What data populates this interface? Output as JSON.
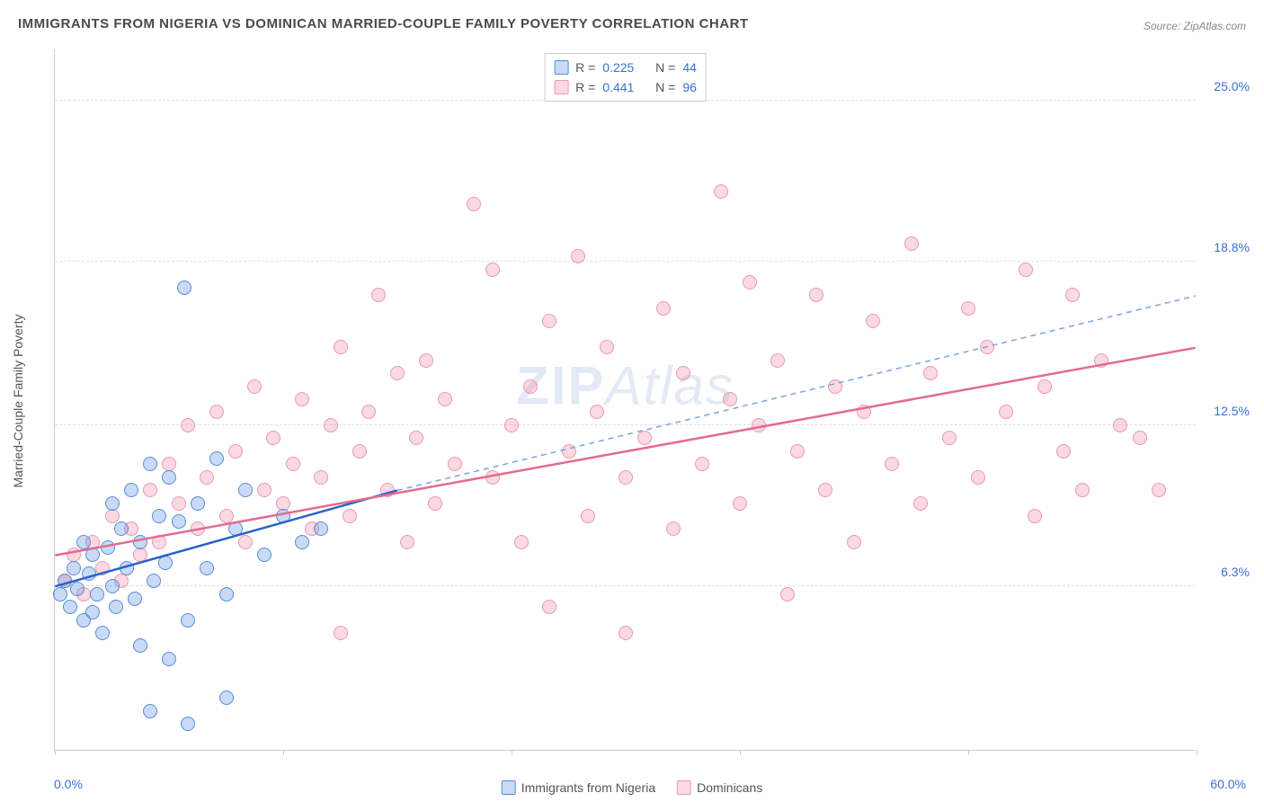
{
  "title": "IMMIGRANTS FROM NIGERIA VS DOMINICAN MARRIED-COUPLE FAMILY POVERTY CORRELATION CHART",
  "source": "Source: ZipAtlas.com",
  "watermark_bold": "ZIP",
  "watermark_rest": "Atlas",
  "yaxis_title": "Married-Couple Family Poverty",
  "chart": {
    "type": "scatter-correlation",
    "background_color": "#ffffff",
    "grid_color": "#e0e0e0",
    "axis_color": "#cccccc",
    "xlim": [
      0,
      60
    ],
    "ylim": [
      0,
      27
    ],
    "xlabel_min": "0.0%",
    "xlabel_max": "60.0%",
    "xtick_positions": [
      0,
      12,
      24,
      36,
      48,
      60
    ],
    "ytick_positions": [
      6.3,
      12.5,
      18.8,
      25.0
    ],
    "ytick_labels": [
      "6.3%",
      "12.5%",
      "18.8%",
      "25.0%"
    ],
    "ytick_color": "#3b6fd8",
    "xtick_color": "#3b6fd8",
    "marker_radius": 8,
    "marker_stroke_width": 1,
    "series": [
      {
        "name": "Immigrants from Nigeria",
        "color_fill": "rgba(96, 150, 230, 0.35)",
        "color_stroke": "#5b8cd6",
        "R": "0.225",
        "N": "44",
        "trend": {
          "x1": 0,
          "y1": 6.3,
          "x2": 18,
          "y2": 10.0,
          "solid_color": "#2a62c9",
          "dash_x2": 60,
          "dash_y2": 17.5,
          "dash_color": "#7ba3e0"
        },
        "points": [
          [
            0.3,
            6.0
          ],
          [
            0.5,
            6.5
          ],
          [
            0.8,
            5.5
          ],
          [
            1.0,
            7.0
          ],
          [
            1.2,
            6.2
          ],
          [
            1.5,
            5.0
          ],
          [
            1.5,
            8.0
          ],
          [
            1.8,
            6.8
          ],
          [
            2.0,
            5.3
          ],
          [
            2.0,
            7.5
          ],
          [
            2.2,
            6.0
          ],
          [
            2.5,
            4.5
          ],
          [
            2.8,
            7.8
          ],
          [
            3.0,
            6.3
          ],
          [
            3.0,
            9.5
          ],
          [
            3.2,
            5.5
          ],
          [
            3.5,
            8.5
          ],
          [
            3.8,
            7.0
          ],
          [
            4.0,
            10.0
          ],
          [
            4.2,
            5.8
          ],
          [
            4.5,
            8.0
          ],
          [
            4.5,
            4.0
          ],
          [
            5.0,
            11.0
          ],
          [
            5.2,
            6.5
          ],
          [
            5.5,
            9.0
          ],
          [
            5.8,
            7.2
          ],
          [
            6.0,
            10.5
          ],
          [
            6.0,
            3.5
          ],
          [
            6.5,
            8.8
          ],
          [
            6.8,
            17.8
          ],
          [
            7.0,
            5.0
          ],
          [
            7.5,
            9.5
          ],
          [
            8.0,
            7.0
          ],
          [
            8.5,
            11.2
          ],
          [
            9.0,
            6.0
          ],
          [
            9.5,
            8.5
          ],
          [
            10.0,
            10.0
          ],
          [
            11.0,
            7.5
          ],
          [
            12.0,
            9.0
          ],
          [
            13.0,
            8.0
          ],
          [
            14.0,
            8.5
          ],
          [
            5.0,
            1.5
          ],
          [
            7.0,
            1.0
          ],
          [
            9.0,
            2.0
          ]
        ]
      },
      {
        "name": "Dominicans",
        "color_fill": "rgba(240, 130, 160, 0.30)",
        "color_stroke": "#e89ab0",
        "R": "0.441",
        "N": "96",
        "trend": {
          "x1": 0,
          "y1": 7.5,
          "x2": 60,
          "y2": 15.5,
          "solid_color": "#e36b8f"
        },
        "points": [
          [
            0.5,
            6.5
          ],
          [
            1.0,
            7.5
          ],
          [
            1.5,
            6.0
          ],
          [
            2.0,
            8.0
          ],
          [
            2.5,
            7.0
          ],
          [
            3.0,
            9.0
          ],
          [
            3.5,
            6.5
          ],
          [
            4.0,
            8.5
          ],
          [
            4.5,
            7.5
          ],
          [
            5.0,
            10.0
          ],
          [
            5.5,
            8.0
          ],
          [
            6.0,
            11.0
          ],
          [
            6.5,
            9.5
          ],
          [
            7.0,
            12.5
          ],
          [
            7.5,
            8.5
          ],
          [
            8.0,
            10.5
          ],
          [
            8.5,
            13.0
          ],
          [
            9.0,
            9.0
          ],
          [
            9.5,
            11.5
          ],
          [
            10.0,
            8.0
          ],
          [
            10.5,
            14.0
          ],
          [
            11.0,
            10.0
          ],
          [
            11.5,
            12.0
          ],
          [
            12.0,
            9.5
          ],
          [
            12.5,
            11.0
          ],
          [
            13.0,
            13.5
          ],
          [
            13.5,
            8.5
          ],
          [
            14.0,
            10.5
          ],
          [
            14.5,
            12.5
          ],
          [
            15.0,
            15.5
          ],
          [
            15.5,
            9.0
          ],
          [
            16.0,
            11.5
          ],
          [
            16.5,
            13.0
          ],
          [
            17.0,
            17.5
          ],
          [
            17.5,
            10.0
          ],
          [
            18.0,
            14.5
          ],
          [
            18.5,
            8.0
          ],
          [
            19.0,
            12.0
          ],
          [
            19.5,
            15.0
          ],
          [
            20.0,
            9.5
          ],
          [
            20.5,
            13.5
          ],
          [
            21.0,
            11.0
          ],
          [
            22.0,
            21.0
          ],
          [
            23.0,
            10.5
          ],
          [
            23.0,
            18.5
          ],
          [
            24.0,
            12.5
          ],
          [
            24.5,
            8.0
          ],
          [
            25.0,
            14.0
          ],
          [
            26.0,
            5.5
          ],
          [
            26.0,
            16.5
          ],
          [
            27.0,
            11.5
          ],
          [
            27.5,
            19.0
          ],
          [
            28.0,
            9.0
          ],
          [
            28.5,
            13.0
          ],
          [
            29.0,
            15.5
          ],
          [
            30.0,
            10.5
          ],
          [
            30.0,
            4.5
          ],
          [
            31.0,
            12.0
          ],
          [
            32.0,
            17.0
          ],
          [
            32.5,
            8.5
          ],
          [
            33.0,
            14.5
          ],
          [
            34.0,
            11.0
          ],
          [
            35.0,
            21.5
          ],
          [
            35.5,
            13.5
          ],
          [
            36.0,
            9.5
          ],
          [
            36.5,
            18.0
          ],
          [
            37.0,
            12.5
          ],
          [
            38.0,
            15.0
          ],
          [
            38.5,
            6.0
          ],
          [
            39.0,
            11.5
          ],
          [
            40.0,
            17.5
          ],
          [
            40.5,
            10.0
          ],
          [
            41.0,
            14.0
          ],
          [
            42.0,
            8.0
          ],
          [
            42.5,
            13.0
          ],
          [
            43.0,
            16.5
          ],
          [
            44.0,
            11.0
          ],
          [
            45.0,
            19.5
          ],
          [
            45.5,
            9.5
          ],
          [
            46.0,
            14.5
          ],
          [
            47.0,
            12.0
          ],
          [
            48.0,
            17.0
          ],
          [
            48.5,
            10.5
          ],
          [
            49.0,
            15.5
          ],
          [
            50.0,
            13.0
          ],
          [
            51.0,
            18.5
          ],
          [
            51.5,
            9.0
          ],
          [
            52.0,
            14.0
          ],
          [
            53.0,
            11.5
          ],
          [
            53.5,
            17.5
          ],
          [
            54.0,
            10.0
          ],
          [
            55.0,
            15.0
          ],
          [
            56.0,
            12.5
          ],
          [
            57.0,
            12.0
          ],
          [
            58.0,
            10.0
          ],
          [
            15.0,
            4.5
          ]
        ]
      }
    ]
  },
  "bottom_legend": [
    {
      "label": "Immigrants from Nigeria",
      "fill": "rgba(96,150,230,0.35)",
      "stroke": "#5b8cd6"
    },
    {
      "label": "Dominicans",
      "fill": "rgba(240,130,160,0.30)",
      "stroke": "#e89ab0"
    }
  ]
}
